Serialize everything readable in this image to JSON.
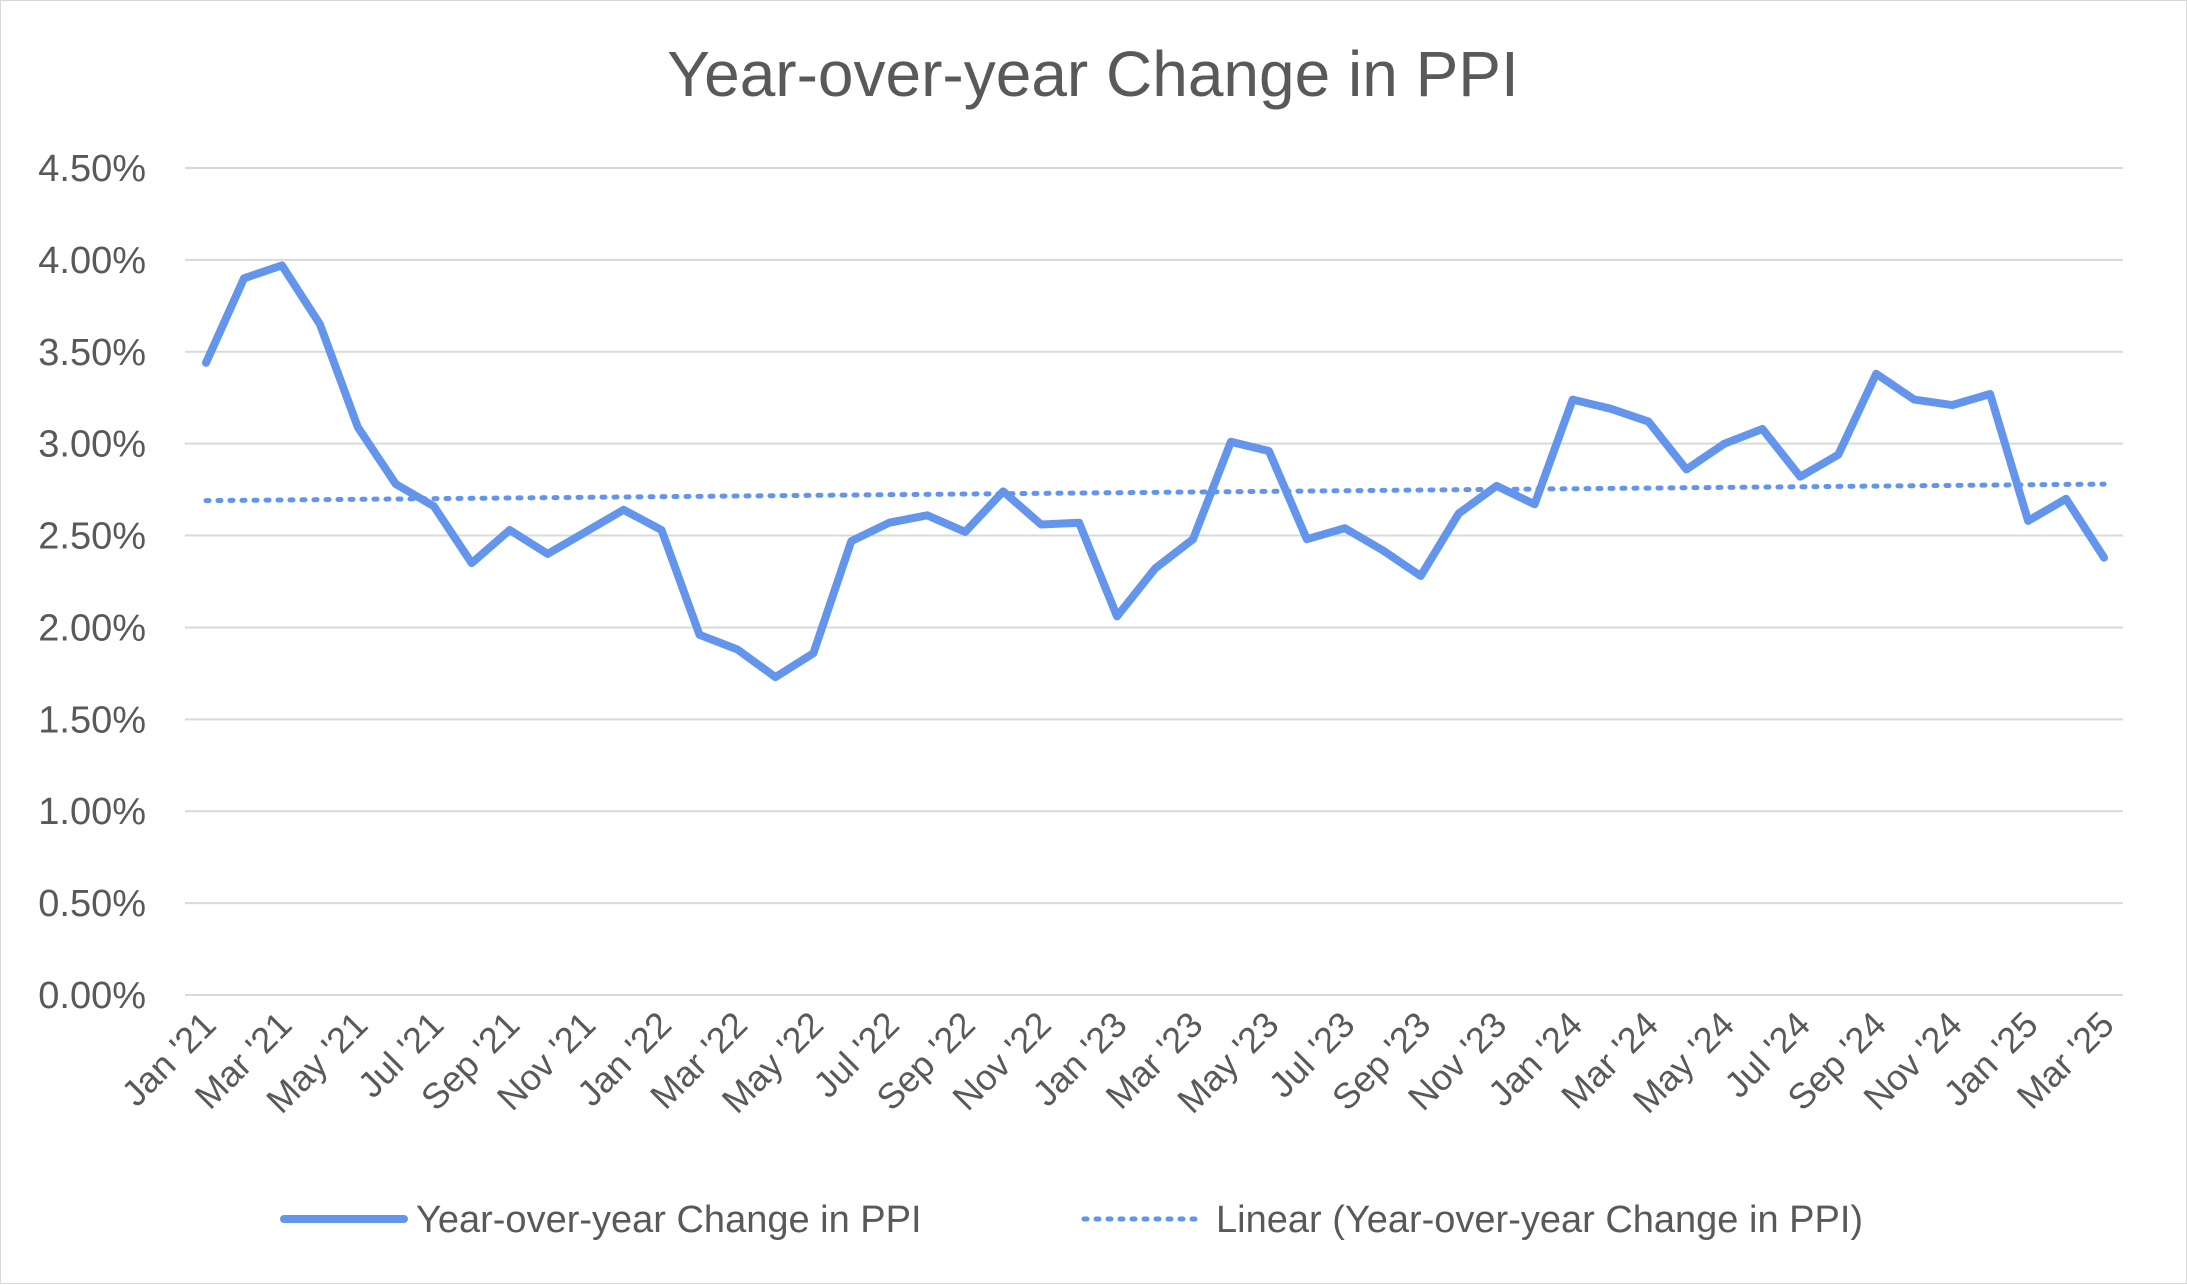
{
  "chart_data": {
    "type": "line",
    "title": "Year-over-year Change in PPI",
    "xlabel": "",
    "ylabel": "",
    "ylim": [
      0,
      4.5
    ],
    "y_ticks": [
      "0.00%",
      "0.50%",
      "1.00%",
      "1.50%",
      "2.00%",
      "2.50%",
      "3.00%",
      "3.50%",
      "4.00%",
      "4.50%"
    ],
    "y_tick_values": [
      0,
      0.5,
      1.0,
      1.5,
      2.0,
      2.5,
      3.0,
      3.5,
      4.0,
      4.5
    ],
    "grid": true,
    "legend_position": "bottom",
    "categories": [
      "Jan '21",
      "Feb '21",
      "Mar '21",
      "Apr '21",
      "May '21",
      "Jun '21",
      "Jul '21",
      "Aug '21",
      "Sep '21",
      "Oct '21",
      "Nov '21",
      "Dec '21",
      "Jan '22",
      "Feb '22",
      "Mar '22",
      "Apr '22",
      "May '22",
      "Jun '22",
      "Jul '22",
      "Aug '22",
      "Sep '22",
      "Oct '22",
      "Nov '22",
      "Dec '22",
      "Jan '23",
      "Feb '23",
      "Mar '23",
      "Apr '23",
      "May '23",
      "Jun '23",
      "Jul '23",
      "Aug '23",
      "Sep '23",
      "Oct '23",
      "Nov '23",
      "Dec '23",
      "Jan '24",
      "Feb '24",
      "Mar '24",
      "Apr '24",
      "May '24",
      "Jun '24",
      "Jul '24",
      "Aug '24",
      "Sep '24",
      "Oct '24",
      "Nov '24",
      "Dec '24",
      "Jan '25",
      "Feb '25",
      "Mar '25"
    ],
    "x_tick_labels": [
      "Jan '21",
      "Mar '21",
      "May '21",
      "Jul '21",
      "Sep '21",
      "Nov '21",
      "Jan '22",
      "Mar '22",
      "May '22",
      "Jul '22",
      "Sep '22",
      "Nov '22",
      "Jan '23",
      "Mar '23",
      "May '23",
      "Jul '23",
      "Sep '23",
      "Nov '23",
      "Jan '24",
      "Mar '24",
      "May '24",
      "Jul '24",
      "Sep '24",
      "Nov '24",
      "Jan '25",
      "Mar '25"
    ],
    "series": [
      {
        "name": "Year-over-year Change in PPI",
        "color": "#6495ED",
        "style": "solid",
        "values": [
          3.44,
          3.9,
          3.97,
          3.65,
          3.09,
          2.78,
          2.66,
          2.35,
          2.53,
          2.4,
          2.52,
          2.64,
          2.53,
          1.96,
          1.88,
          1.73,
          1.86,
          2.47,
          2.57,
          2.61,
          2.52,
          2.74,
          2.56,
          2.57,
          2.06,
          2.32,
          2.48,
          3.01,
          2.96,
          2.48,
          2.54,
          2.42,
          2.28,
          2.62,
          2.77,
          2.67,
          3.24,
          3.19,
          3.12,
          2.86,
          3.0,
          3.08,
          2.82,
          2.94,
          3.38,
          3.24,
          3.21,
          3.27,
          2.58,
          2.7,
          2.38
        ]
      },
      {
        "name": "Linear (Year-over-year Change in PPI)",
        "color": "#6495ED",
        "style": "dotted",
        "trendline": true,
        "start_value": 2.69,
        "end_value": 2.78
      }
    ]
  }
}
